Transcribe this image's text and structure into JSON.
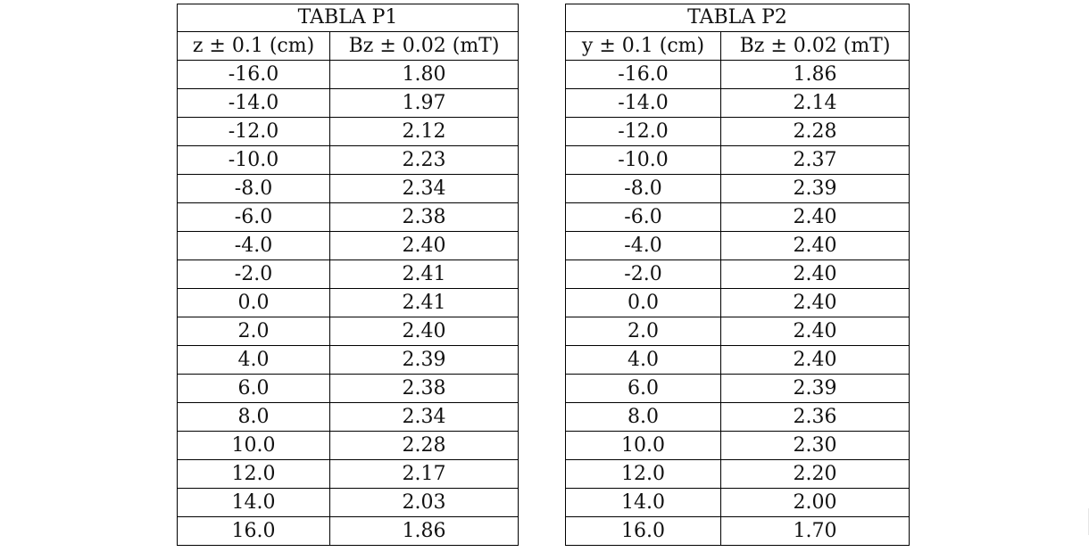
{
  "tables": [
    {
      "title": "TABLA P1",
      "headers": [
        "z ± 0.1 (cm)",
        "Bz ± 0.02 (mT)"
      ],
      "rows": [
        [
          "-16.0",
          "1.80"
        ],
        [
          "-14.0",
          "1.97"
        ],
        [
          "-12.0",
          "2.12"
        ],
        [
          "-10.0",
          "2.23"
        ],
        [
          "-8.0",
          "2.34"
        ],
        [
          "-6.0",
          "2.38"
        ],
        [
          "-4.0",
          "2.40"
        ],
        [
          "-2.0",
          "2.41"
        ],
        [
          "0.0",
          "2.41"
        ],
        [
          "2.0",
          "2.40"
        ],
        [
          "4.0",
          "2.39"
        ],
        [
          "6.0",
          "2.38"
        ],
        [
          "8.0",
          "2.34"
        ],
        [
          "10.0",
          "2.28"
        ],
        [
          "12.0",
          "2.17"
        ],
        [
          "14.0",
          "2.03"
        ],
        [
          "16.0",
          "1.86"
        ]
      ]
    },
    {
      "title": "TABLA P2",
      "headers": [
        "y ± 0.1 (cm)",
        "Bz ± 0.02 (mT)"
      ],
      "rows": [
        [
          "-16.0",
          "1.86"
        ],
        [
          "-14.0",
          "2.14"
        ],
        [
          "-12.0",
          "2.28"
        ],
        [
          "-10.0",
          "2.37"
        ],
        [
          "-8.0",
          "2.39"
        ],
        [
          "-6.0",
          "2.40"
        ],
        [
          "-4.0",
          "2.40"
        ],
        [
          "-2.0",
          "2.40"
        ],
        [
          "0.0",
          "2.40"
        ],
        [
          "2.0",
          "2.40"
        ],
        [
          "4.0",
          "2.40"
        ],
        [
          "6.0",
          "2.39"
        ],
        [
          "8.0",
          "2.36"
        ],
        [
          "10.0",
          "2.30"
        ],
        [
          "12.0",
          "2.20"
        ],
        [
          "14.0",
          "2.00"
        ],
        [
          "16.0",
          "1.70"
        ]
      ]
    }
  ],
  "colors": {
    "background": "#ffffff",
    "border": "#000000",
    "text": "#111111"
  }
}
